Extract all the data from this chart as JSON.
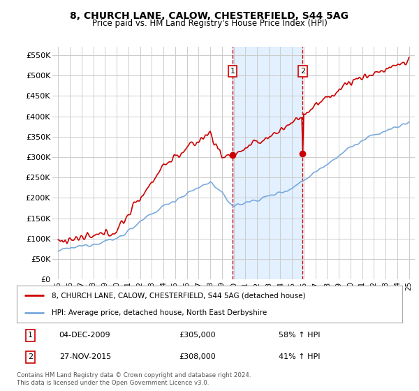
{
  "title": "8, CHURCH LANE, CALOW, CHESTERFIELD, S44 5AG",
  "subtitle": "Price paid vs. HM Land Registry's House Price Index (HPI)",
  "red_label": "8, CHURCH LANE, CALOW, CHESTERFIELD, S44 5AG (detached house)",
  "blue_label": "HPI: Average price, detached house, North East Derbyshire",
  "marker1_date": "04-DEC-2009",
  "marker1_price": "£305,000",
  "marker1_pct": "58% ↑ HPI",
  "marker2_date": "27-NOV-2015",
  "marker2_price": "£308,000",
  "marker2_pct": "41% ↑ HPI",
  "marker1_x": 2009.92,
  "marker1_y": 305000,
  "marker2_x": 2015.9,
  "marker2_y": 308000,
  "ylim": [
    0,
    570000
  ],
  "xlim": [
    1994.5,
    2025.5
  ],
  "footer": "Contains HM Land Registry data © Crown copyright and database right 2024.\nThis data is licensed under the Open Government Licence v3.0.",
  "red_color": "#cc0000",
  "blue_color": "#7aaadd",
  "bg_color": "#ffffff",
  "grid_color": "#cccccc",
  "shade_color": "#ddeeff",
  "yticks": [
    0,
    50000,
    100000,
    150000,
    200000,
    250000,
    300000,
    350000,
    400000,
    450000,
    500000,
    550000
  ],
  "xticks": [
    1995,
    1996,
    1997,
    1998,
    1999,
    2000,
    2001,
    2002,
    2003,
    2004,
    2005,
    2006,
    2007,
    2008,
    2009,
    2010,
    2011,
    2012,
    2013,
    2014,
    2015,
    2016,
    2017,
    2018,
    2019,
    2020,
    2021,
    2022,
    2023,
    2024,
    2025
  ]
}
